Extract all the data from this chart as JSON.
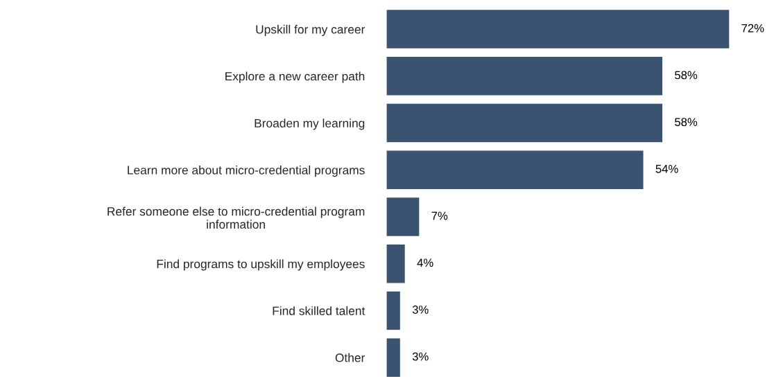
{
  "chart_data": {
    "type": "bar",
    "orientation": "horizontal",
    "categories": [
      "Upskill for my career",
      "Explore a new career path",
      "Broaden my learning",
      "Learn more about micro-credential programs",
      "Refer someone else to micro-credential program\ninformation",
      "Find programs to upskill my employees",
      "Find skilled talent",
      "Other"
    ],
    "values": [
      72,
      58,
      58,
      54,
      7,
      4,
      3,
      3
    ],
    "value_labels": [
      "72%",
      "58%",
      "58%",
      "54%",
      "7%",
      "4%",
      "3%",
      "3%"
    ],
    "color": "#3b5371",
    "grid": false,
    "tick_labels": "y"
  }
}
